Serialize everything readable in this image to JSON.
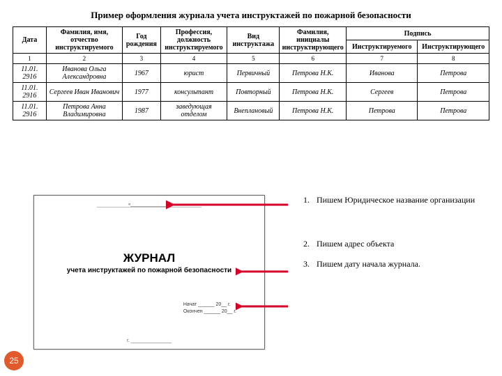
{
  "title": "Пример оформления журнала учета инструктажей по пожарной безопасности",
  "table": {
    "columns": {
      "c1": "Дата",
      "c2": "Фамилия, имя, отчество инструктируемого",
      "c3": "Год рождения",
      "c4": "Профессия, должность инструктируемого",
      "c5": "Вид инструктажа",
      "c6": "Фамилия, инициалы инструктирующего",
      "c7": "Подпись",
      "c7a": "Инструктируемого",
      "c7b": "Инструктирующего"
    },
    "widths": [
      "7%",
      "16%",
      "8%",
      "14%",
      "11%",
      "14%",
      "15%",
      "15%"
    ],
    "nums": [
      "1",
      "2",
      "3",
      "4",
      "5",
      "6",
      "7",
      "8"
    ],
    "rows": [
      {
        "d": "11.01. 2916",
        "fio": "Иванова Ольга Александровна",
        "y": "1967",
        "prof": "юрист",
        "vid": "Первичный",
        "instr": "Петрова Н.К.",
        "s1": "Иванова",
        "s2": "Петрова"
      },
      {
        "d": "11.01. 2916",
        "fio": "Сергеев Иван Иванович",
        "y": "1977",
        "prof": "консультант",
        "vid": "Повторный",
        "instr": "Петрова Н.К.",
        "s1": "Сергеев",
        "s2": "Петрова"
      },
      {
        "d": "11.01. 2916",
        "fio": "Петрова Анна Владимировна",
        "y": "1987",
        "prof": "заведующая отделом",
        "vid": "Внеплановый",
        "instr": "Петрова Н.К.",
        "s1": "Петрова",
        "s2": "Петрова"
      }
    ]
  },
  "cover": {
    "org": "«________________»",
    "heading": "ЖУРНАЛ",
    "sub": "учета инструктажей по пожарной безопасности",
    "d1": "Начат  ______ 20__ г.",
    "d2": "Окончен ______ 20__ г.",
    "city": "г. _______________"
  },
  "list": {
    "i1": {
      "n": "1.",
      "t": "Пишем Юридическое название организации"
    },
    "i2": {
      "n": "2.",
      "t": "Пишем  адрес объекта"
    },
    "i3": {
      "n": "3.",
      "t": "Пишем дату начала журнала."
    }
  },
  "badge": "25",
  "colors": {
    "arrow": "#d4002a"
  }
}
